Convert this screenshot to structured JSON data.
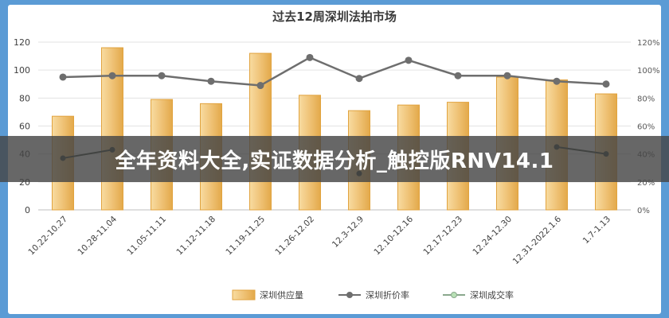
{
  "chart_data": {
    "type": "bar",
    "title": "过去12周深圳法拍市场",
    "categories": [
      "10.22-10.27",
      "10.28-11.04",
      "11.05-11.11",
      "11.12-11.18",
      "11.19-11.25",
      "11.26-12.02",
      "12.3-12.9",
      "12.10-12.16",
      "12.17-12.23",
      "12.24-12.30",
      "12.31-2022.1.6",
      "1.7-1.13"
    ],
    "y_left": {
      "ylim": [
        0,
        120
      ],
      "ticks": [
        "0",
        "20",
        "40",
        "60",
        "80",
        "100",
        "120"
      ]
    },
    "y_right": {
      "ylim": [
        0,
        120
      ],
      "ticks": [
        "0%",
        "20%",
        "40%",
        "60%",
        "80%",
        "100%",
        "120%"
      ]
    },
    "series": [
      {
        "name": "深圳供应量",
        "type": "bar",
        "axis": "left",
        "color": "#e8b04a",
        "values": [
          67,
          116,
          79,
          76,
          112,
          82,
          71,
          75,
          77,
          95,
          93,
          83
        ]
      },
      {
        "name": "深圳折价率",
        "type": "line",
        "axis": "right",
        "color": "#6e6e6e",
        "values": [
          95,
          96,
          96,
          92,
          89,
          109,
          94,
          107,
          96,
          96,
          92,
          90
        ]
      },
      {
        "name": "深圳成交率",
        "type": "line",
        "axis": "right",
        "color": "#2e3b30",
        "values": [
          37,
          43,
          null,
          null,
          null,
          null,
          26,
          null,
          null,
          null,
          45,
          40
        ]
      }
    ],
    "legend_position": "bottom",
    "grid": true
  },
  "overlay": {
    "banner_text": "全年资料大全,实证数据分析_触控版RNV14.1"
  }
}
